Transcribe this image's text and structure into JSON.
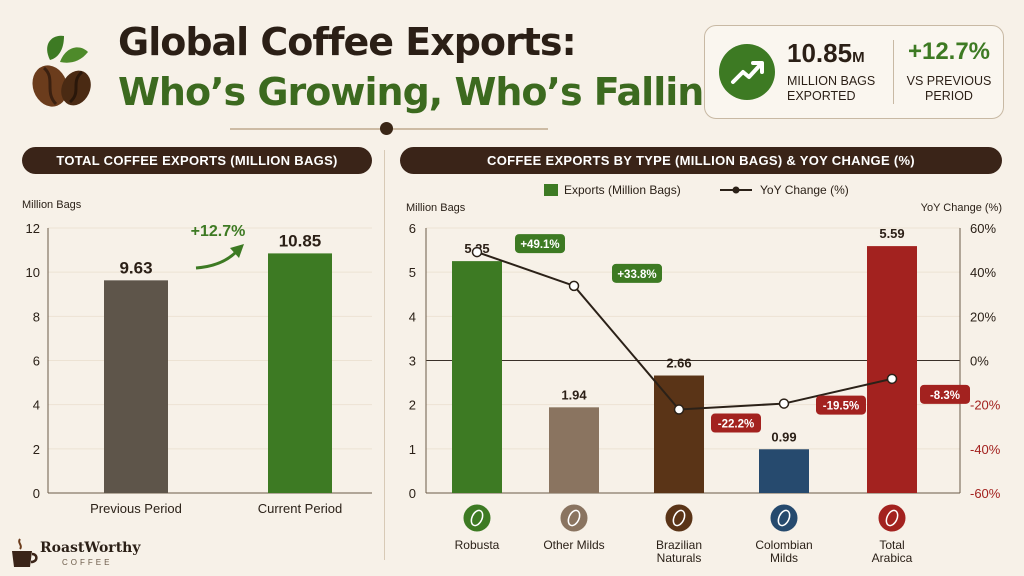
{
  "title_line1": "Global Coffee Exports:",
  "title_line2": "Who’s Growing, Who’s Falling?",
  "kpi": {
    "total_value": "10.85",
    "total_unit": "M",
    "total_label": "MILLION BAGS EXPORTED",
    "change_value": "+12.7%",
    "change_label": "VS PREVIOUS PERIOD"
  },
  "brand": {
    "name": "RoastWorthy",
    "sub": "COFFEE"
  },
  "colors": {
    "green": "#3d7a23",
    "brown_dark": "#3a2418",
    "gray_brown": "#5e554a",
    "tan": "#8a7460",
    "brown": "#5a3417",
    "navy": "#264a6e",
    "red": "#a3221f"
  },
  "chart_data": [
    {
      "type": "bar",
      "title": "TOTAL COFFEE EXPORTS (MILLION BAGS)",
      "ylabel": "Million Bags",
      "ylim": [
        0,
        12
      ],
      "yticks": [
        0,
        2,
        4,
        6,
        8,
        10,
        12
      ],
      "categories": [
        "Previous Period",
        "Current Period"
      ],
      "values": [
        9.63,
        10.85
      ],
      "value_labels": [
        "9.63",
        "10.85"
      ],
      "colors": [
        "#5e554a",
        "#3d7a23"
      ],
      "annotation": "+12.7%"
    },
    {
      "type": "bar",
      "title": "COFFEE EXPORTS BY TYPE (MILLION BAGS) & YOY CHANGE (%)",
      "ylabel": "Million Bags",
      "y2label": "YoY Change (%)",
      "ylim": [
        0,
        6
      ],
      "yticks": [
        0,
        1,
        2,
        3,
        4,
        5,
        6
      ],
      "y2lim": [
        -60,
        60
      ],
      "y2ticks": [
        "60%",
        "40%",
        "20%",
        "0%",
        "-20%",
        "-40%",
        "-60%"
      ],
      "legend": [
        "Exports (Million Bags)",
        "YoY Change (%)"
      ],
      "legend_position": "top",
      "categories": [
        "Robusta",
        "Other Milds",
        "Brazilian Naturals",
        "Colombian Milds",
        "Total Arabica"
      ],
      "series": [
        {
          "name": "Exports (Million Bags)",
          "values": [
            5.25,
            1.94,
            2.66,
            0.99,
            5.59
          ],
          "labels": [
            "5.25",
            "1.94",
            "2.66",
            "0.99",
            "5.59"
          ]
        },
        {
          "name": "YoY Change (%)",
          "values": [
            49.1,
            33.8,
            -22.2,
            -19.5,
            -8.3
          ],
          "labels": [
            "+49.1%",
            "+33.8%",
            "-22.2%",
            "-19.5%",
            "-8.3%"
          ]
        }
      ],
      "colors": [
        "#3d7a23",
        "#8a7460",
        "#5a3417",
        "#264a6e",
        "#a3221f"
      ]
    }
  ]
}
